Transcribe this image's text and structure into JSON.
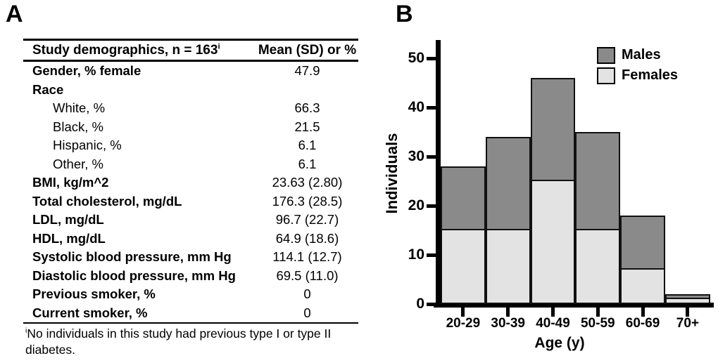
{
  "panelA": {
    "label": "A",
    "table": {
      "header": {
        "label": "Study demographics, n = 163",
        "label_sup": "i",
        "value": "Mean (SD) or %"
      },
      "rows": [
        {
          "label": "Gender, % female",
          "value": "47.9"
        },
        {
          "label": "Race",
          "value": ""
        },
        {
          "label": "White, %",
          "value": "66.3"
        },
        {
          "label": "Black, %",
          "value": "21.5"
        },
        {
          "label": "Hispanic, %",
          "value": "6.1"
        },
        {
          "label": "Other, %",
          "value": "6.1"
        },
        {
          "label": "BMI, kg/m^2",
          "value": "23.63 (2.80)"
        },
        {
          "label": "Total cholesterol, mg/dL",
          "value": "176.3 (28.5)"
        },
        {
          "label": "LDL, mg/dL",
          "value": "96.7 (22.7)"
        },
        {
          "label": "HDL, mg/dL",
          "value": "64.9 (18.6)"
        },
        {
          "label": "Systolic blood pressure, mm Hg",
          "value": "114.1 (12.7)"
        },
        {
          "label": "Diastolic blood pressure, mm Hg",
          "value": "69.5 (11.0)"
        },
        {
          "label": "Previous smoker, %",
          "value": "0"
        },
        {
          "label": "Current smoker, %",
          "value": "0"
        }
      ]
    },
    "footnote": {
      "marker": "i",
      "text": "No individuals in this study had previous type I or type II diabetes."
    }
  },
  "panelB": {
    "label": "B"
  },
  "chart_data": {
    "type": "bar",
    "stacked": true,
    "title": "",
    "xlabel": "Age (y)",
    "ylabel": "Individuals",
    "categories": [
      "20-29",
      "30-39",
      "40-49",
      "50-59",
      "60-69",
      "70+"
    ],
    "series": [
      {
        "name": "Males",
        "color": "#8a8a8a",
        "values": [
          13,
          19,
          21,
          20,
          11,
          1
        ]
      },
      {
        "name": "Females",
        "color": "#e3e3e3",
        "values": [
          15,
          15,
          25,
          15,
          7,
          1
        ]
      }
    ],
    "stack_totals": [
      28,
      34,
      46,
      35,
      18,
      2
    ],
    "yticks": [
      0,
      10,
      20,
      30,
      40,
      50
    ],
    "ylim": [
      0,
      53
    ],
    "grid": false,
    "legend_position": "top-right",
    "bar_border_color": "#111111"
  }
}
